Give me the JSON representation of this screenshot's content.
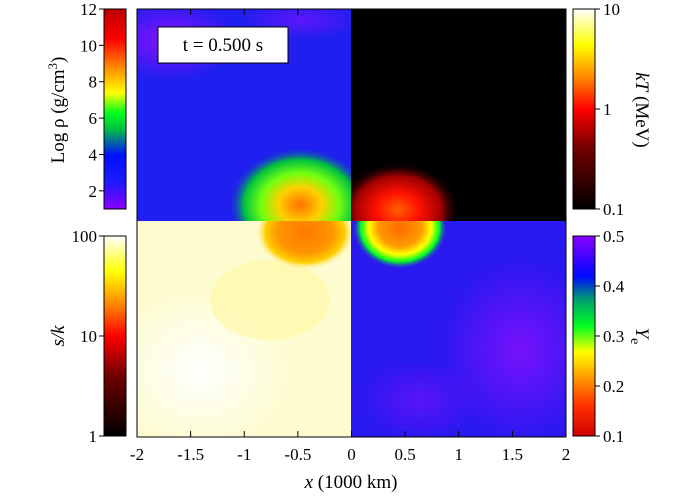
{
  "chart_data": {
    "type": "heatmap",
    "annotation": "t = 0.500 s",
    "xlabel_var": "x",
    "xlabel_unit": "(1000 km)",
    "xlim": [
      -2,
      2
    ],
    "x_ticks": [
      "-2",
      "-1.5",
      "-1",
      "-0.5",
      "0",
      "0.5",
      "1",
      "1.5",
      "2"
    ],
    "panels": [
      {
        "quadrant": "top-left",
        "quantity": "Log ρ (g/cm³)",
        "colormap": "rainbow",
        "range": [
          1,
          12
        ]
      },
      {
        "quadrant": "top-right",
        "quantity": "kT (MeV)",
        "colormap": "hot",
        "range": [
          0.1,
          10
        ],
        "scale": "log"
      },
      {
        "quadrant": "bottom-left",
        "quantity": "s/k",
        "colormap": "hot",
        "range": [
          1,
          100
        ],
        "scale": "log"
      },
      {
        "quadrant": "bottom-right",
        "quantity": "Ye",
        "colormap": "rainbow",
        "range": [
          0.1,
          0.5
        ]
      }
    ],
    "colorbars": {
      "left_top": {
        "label_main": "Log ρ (g/cm",
        "label_sup": "3",
        "label_end": ")",
        "ticks": [
          "12",
          "10",
          "8",
          "6",
          "4",
          "2"
        ]
      },
      "left_bottom": {
        "label_var": "s/k",
        "ticks": [
          "100",
          "10",
          "1"
        ]
      },
      "right_top": {
        "label_var": "kT",
        "label_unit": "(MeV)",
        "ticks": [
          "10",
          "1",
          "0.1"
        ]
      },
      "right_bottom": {
        "label_var": "Y",
        "label_sub": "e",
        "ticks": [
          "0.5",
          "0.4",
          "0.3",
          "0.2",
          "0.1"
        ]
      }
    },
    "colors": {
      "rainbow": [
        "#8a00ff",
        "#1a1aff",
        "#0008ff",
        "#00ff20",
        "#ffff00",
        "#ff8000",
        "#ff0000",
        "#bb0000"
      ],
      "hot": [
        "#000000",
        "#800000",
        "#ff0000",
        "#ff8000",
        "#ffff00",
        "#ffffff"
      ],
      "density_bg": "#1f1fef",
      "ye_bg": "#2a18f0",
      "entropy_bg": "#fdfcd0",
      "temp_bg": "#000000"
    }
  }
}
